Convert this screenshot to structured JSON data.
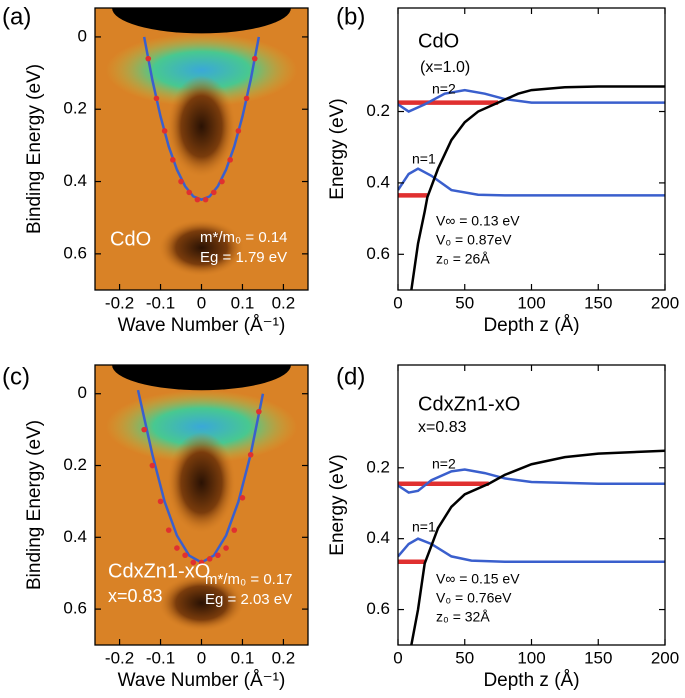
{
  "chart_data": [
    {
      "type": "line",
      "panel": "(a)",
      "background": "arpes",
      "xlabel": "Wave Number (Å⁻¹)",
      "ylabel": "Binding Energy (eV)",
      "xlim": [
        -0.26,
        0.26
      ],
      "xticks": [
        -0.2,
        -0.1,
        0,
        0.1,
        0.2
      ],
      "ylim": [
        -0.08,
        0.7
      ],
      "y_inverted": true,
      "yticks": [
        0,
        0.2,
        0.4,
        0.6
      ],
      "annotations": [
        "CdO",
        "m*/m₀ = 0.14",
        "Eg = 1.79 eV"
      ],
      "annotation_color": "#ffffff",
      "series": [
        {
          "color": "#3a5fcd",
          "style": "line",
          "x": [
            -0.14,
            -0.12,
            -0.1,
            -0.08,
            -0.06,
            -0.04,
            -0.02,
            0,
            0.02,
            0.04,
            0.06,
            0.08,
            0.1,
            0.12,
            0.14
          ],
          "values": [
            0,
            0.119,
            0.22,
            0.303,
            0.367,
            0.413,
            0.441,
            0.45,
            0.441,
            0.413,
            0.367,
            0.303,
            0.22,
            0.119,
            0
          ]
        },
        {
          "color": "#e03030",
          "style": "dot",
          "x": [
            -0.13,
            -0.11,
            -0.09,
            -0.07,
            -0.05,
            -0.03,
            -0.01,
            0.01,
            0.03,
            0.05,
            0.07,
            0.09,
            0.11,
            0.13
          ],
          "values": [
            0.06,
            0.17,
            0.26,
            0.34,
            0.4,
            0.43,
            0.45,
            0.45,
            0.43,
            0.4,
            0.34,
            0.26,
            0.17,
            0.06
          ]
        }
      ]
    },
    {
      "type": "line",
      "panel": "(b)",
      "xlabel": "Depth z (Å)",
      "ylabel": "Energy (eV)",
      "xlim": [
        0,
        200
      ],
      "xticks": [
        0,
        50,
        100,
        150,
        200
      ],
      "ylim": [
        -0.09,
        0.7
      ],
      "y_inverted": true,
      "yticks": [
        0.2,
        0.4,
        0.6
      ],
      "annotations": [
        "CdO",
        "(x=1.0)",
        "n=2",
        "n=1",
        "V∞ = 0.13 eV",
        "V₀ = 0.87eV",
        "z₀ = 26Å"
      ],
      "annotation_color": "#000000",
      "series": [
        {
          "color": "#e03030",
          "style": "thick",
          "x": [
            0,
            75
          ],
          "values": [
            0.175,
            0.175
          ]
        },
        {
          "color": "#e03030",
          "style": "thick",
          "x": [
            0,
            22
          ],
          "values": [
            0.435,
            0.435
          ]
        },
        {
          "color": "#3a5fcd",
          "style": "line",
          "x": [
            0,
            8,
            20,
            35,
            50,
            65,
            80,
            100,
            150,
            200
          ],
          "values": [
            0.18,
            0.2,
            0.18,
            0.15,
            0.14,
            0.15,
            0.165,
            0.175,
            0.175,
            0.175
          ]
        },
        {
          "color": "#3a5fcd",
          "style": "line",
          "x": [
            0,
            8,
            15,
            25,
            40,
            60,
            80,
            200
          ],
          "values": [
            0.42,
            0.375,
            0.36,
            0.38,
            0.42,
            0.433,
            0.435,
            0.435
          ]
        },
        {
          "color": "#000000",
          "style": "line",
          "x": [
            10,
            15,
            20,
            22,
            30,
            40,
            50,
            60,
            75,
            90,
            100,
            125,
            150,
            200
          ],
          "values": [
            0.7,
            0.57,
            0.48,
            0.44,
            0.36,
            0.28,
            0.23,
            0.2,
            0.175,
            0.15,
            0.14,
            0.132,
            0.13,
            0.13
          ]
        }
      ]
    },
    {
      "type": "line",
      "panel": "(c)",
      "background": "arpes",
      "xlabel": "Wave Number (Å⁻¹)",
      "ylabel": "Binding Energy (eV)",
      "xlim": [
        -0.26,
        0.26
      ],
      "xticks": [
        -0.2,
        -0.1,
        0,
        0.1,
        0.2
      ],
      "ylim": [
        -0.08,
        0.7
      ],
      "y_inverted": true,
      "yticks": [
        0,
        0.2,
        0.4,
        0.6
      ],
      "annotations": [
        "CdxZn1-xO",
        "x=0.83",
        "m*/m₀ = 0.17",
        "Eg = 2.03 eV"
      ],
      "annotation_color": "#ffffff",
      "series": [
        {
          "color": "#3a5fcd",
          "style": "line",
          "x": [
            -0.155,
            -0.12,
            -0.09,
            -0.06,
            -0.03,
            0,
            0.03,
            0.06,
            0.09,
            0.12,
            0.15
          ],
          "values": [
            -0.01,
            0.169,
            0.301,
            0.395,
            0.451,
            0.47,
            0.451,
            0.395,
            0.301,
            0.169,
            0
          ]
        },
        {
          "color": "#e03030",
          "style": "dot",
          "x": [
            -0.14,
            -0.12,
            -0.1,
            -0.08,
            -0.06,
            -0.04,
            -0.02,
            0,
            0.02,
            0.04,
            0.06,
            0.08,
            0.1,
            0.12,
            0.14
          ],
          "values": [
            0.1,
            0.2,
            0.3,
            0.38,
            0.43,
            0.45,
            0.47,
            0.47,
            0.46,
            0.45,
            0.43,
            0.38,
            0.29,
            0.17,
            0.05
          ]
        }
      ]
    },
    {
      "type": "line",
      "panel": "(d)",
      "xlabel": "Depth z (Å)",
      "ylabel": "Energy (eV)",
      "xlim": [
        0,
        200
      ],
      "xticks": [
        0,
        50,
        100,
        150,
        200
      ],
      "ylim": [
        -0.09,
        0.7
      ],
      "y_inverted": true,
      "yticks": [
        0.2,
        0.4,
        0.6
      ],
      "annotations": [
        "CdxZn1-xO",
        "x=0.83",
        "n=2",
        "n=1",
        "V∞ = 0.15 eV",
        "V₀ = 0.76eV",
        "z₀ = 32Å"
      ],
      "annotation_color": "#000000",
      "series": [
        {
          "color": "#e03030",
          "style": "thick",
          "x": [
            0,
            68
          ],
          "values": [
            0.245,
            0.245
          ]
        },
        {
          "color": "#e03030",
          "style": "thick",
          "x": [
            0,
            20
          ],
          "values": [
            0.465,
            0.465
          ]
        },
        {
          "color": "#3a5fcd",
          "style": "line",
          "x": [
            0,
            8,
            15,
            25,
            40,
            50,
            65,
            80,
            100,
            150,
            200
          ],
          "values": [
            0.25,
            0.27,
            0.265,
            0.235,
            0.21,
            0.205,
            0.215,
            0.23,
            0.24,
            0.245,
            0.245
          ]
        },
        {
          "color": "#3a5fcd",
          "style": "line",
          "x": [
            0,
            8,
            15,
            25,
            40,
            55,
            80,
            200
          ],
          "values": [
            0.45,
            0.415,
            0.4,
            0.415,
            0.45,
            0.462,
            0.465,
            0.465
          ]
        },
        {
          "color": "#000000",
          "style": "line",
          "x": [
            10,
            15,
            20,
            25,
            30,
            40,
            50,
            68,
            80,
            100,
            125,
            150,
            200
          ],
          "values": [
            0.7,
            0.6,
            0.47,
            0.42,
            0.37,
            0.31,
            0.275,
            0.245,
            0.22,
            0.19,
            0.17,
            0.16,
            0.152
          ]
        }
      ]
    }
  ]
}
